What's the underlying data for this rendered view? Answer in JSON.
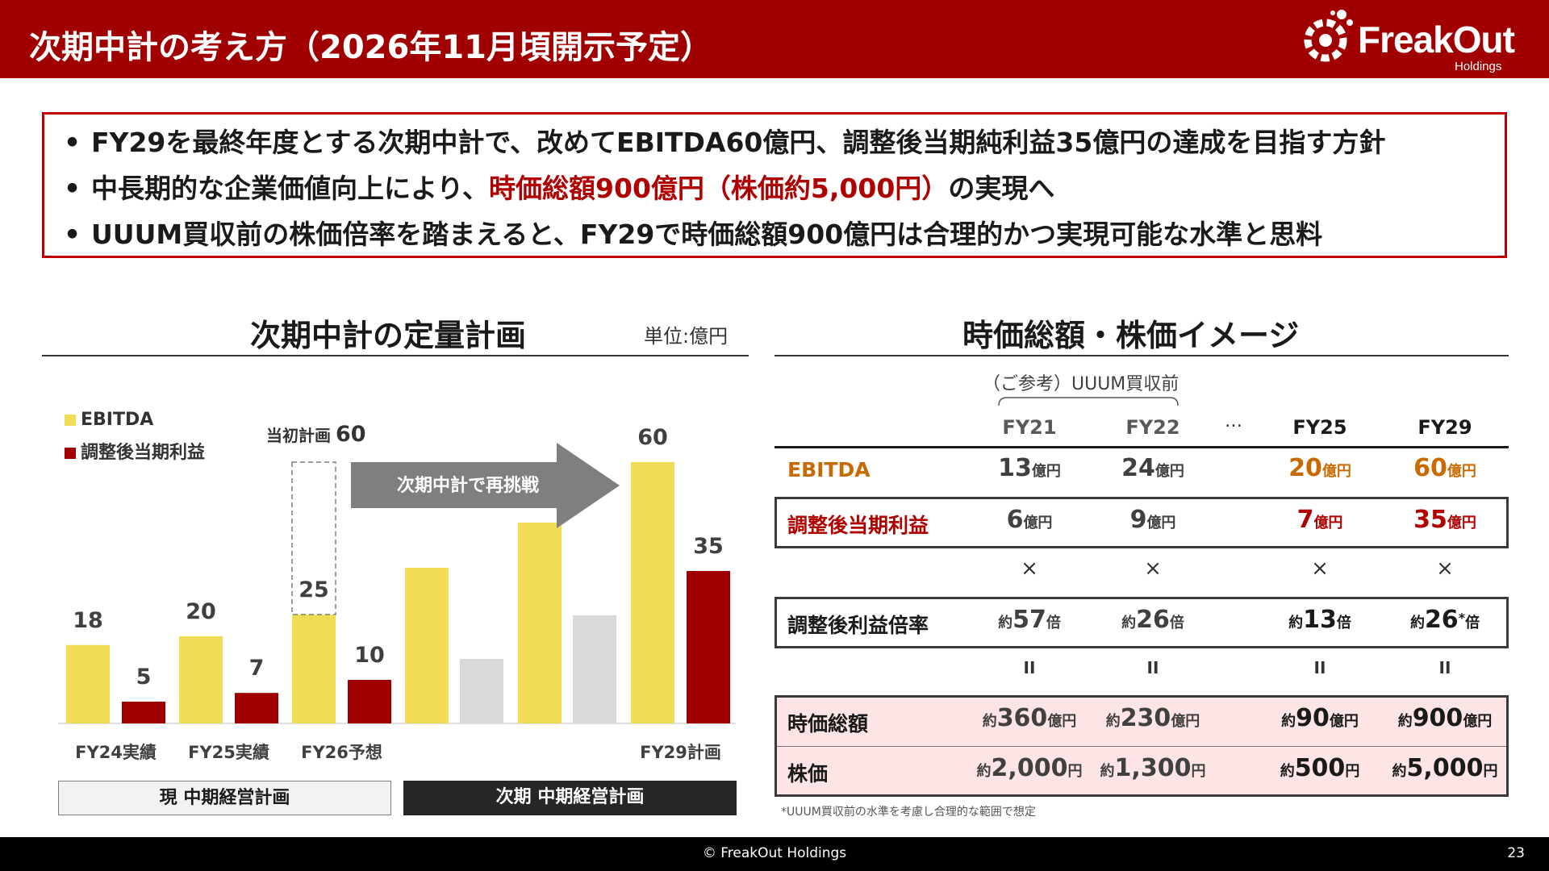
{
  "header": {
    "title": "次期中計の考え方（2026年11月頃開示予定）",
    "logo_name": "FreakOut",
    "logo_sub": "Holdings"
  },
  "messages": {
    "bullet": "•",
    "line1": "FY29を最終年度とする次期中計で、改めてEBITDA60億円、調整後当期純利益35億円の達成を目指す方針",
    "line2_prefix": "中長期的な企業価値向上により、",
    "line2_highlight": "時価総額900億円（株価約5,000円）",
    "line2_suffix": "の実現へ",
    "line3": "UUUM買収前の株価倍率を踏まえると、FY29で時価総額900億円は合理的かつ実現可能な水準と思料"
  },
  "left_section": {
    "title": "次期中計の定量計画",
    "unit": "単位:億円",
    "initial_plan_label": "当初計画",
    "initial_plan_value": "60",
    "arrow_label": "次期中計で再挑戦",
    "phase_current": "現 中期経営計画",
    "phase_next": "次期 中期経営計画"
  },
  "chart_data": {
    "type": "bar",
    "categories": [
      "FY24実績",
      "FY25実績",
      "FY26予想",
      "",
      "",
      "FY29計画"
    ],
    "series": [
      {
        "name": "EBITDA",
        "color": "#f0dc55",
        "values": [
          18,
          20,
          25,
          null,
          null,
          60
        ],
        "labels": [
          "18",
          "20",
          "25",
          "",
          "",
          "60"
        ]
      },
      {
        "name": "調整後当期利益",
        "color": "#a00000",
        "values": [
          5,
          7,
          10,
          null,
          null,
          35
        ],
        "labels": [
          "5",
          "7",
          "10",
          "",
          "",
          "35"
        ]
      }
    ],
    "placeholder_bars": {
      "colors": [
        "#f0dc55",
        "#d9d9d9"
      ],
      "note": "bars for intermediate years carry no value labels"
    },
    "initial_plan": {
      "category": "FY26予想",
      "value": 60
    },
    "ylim": [
      0,
      60
    ]
  },
  "right_section": {
    "title": "時価総額・株価イメージ",
    "sub_caption": "（ご参考）UUUM買収前",
    "columns": [
      "FY21",
      "FY22",
      "FY25",
      "FY29"
    ],
    "ellipsis": "…",
    "rows": {
      "ebitda": {
        "label": "EBITDA",
        "values": [
          "13",
          "24",
          "20",
          "60"
        ],
        "unit": "億円"
      },
      "profit": {
        "label": "調整後当期利益",
        "values": [
          "6",
          "9",
          "7",
          "35"
        ],
        "unit": "億円"
      },
      "multiple": {
        "label": "調整後利益倍率",
        "prefix": "約",
        "values": [
          "57",
          "26",
          "13",
          "26"
        ],
        "unit": "倍",
        "fy29_mark": "*"
      },
      "market_cap": {
        "label": "時価総額",
        "prefix": "約",
        "values": [
          "360",
          "230",
          "90",
          "900"
        ],
        "unit": "億円"
      },
      "share_price": {
        "label": "株価",
        "prefix": "約",
        "values": [
          "2,000",
          "1,300",
          "500",
          "5,000"
        ],
        "unit": "円"
      }
    },
    "times_symbol": "×",
    "equals_symbol": "II",
    "footnote": "*UUUM買収前の水準を考慮し合理的な範囲で想定"
  },
  "footer": {
    "copyright": "© FreakOut Holdings",
    "page": "23"
  }
}
